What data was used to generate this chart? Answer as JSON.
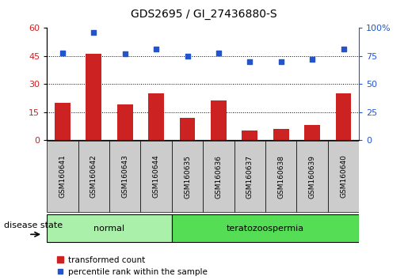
{
  "title": "GDS2695 / GI_27436880-S",
  "samples": [
    "GSM160641",
    "GSM160642",
    "GSM160643",
    "GSM160644",
    "GSM160635",
    "GSM160636",
    "GSM160637",
    "GSM160638",
    "GSM160639",
    "GSM160640"
  ],
  "bar_values": [
    20,
    46,
    19,
    25,
    12,
    21,
    5,
    6,
    8,
    25
  ],
  "scatter_values": [
    78,
    96,
    77,
    81,
    75,
    78,
    70,
    70,
    72,
    81
  ],
  "bar_color": "#cc2222",
  "scatter_color": "#2255cc",
  "ylim_left": [
    0,
    60
  ],
  "ylim_right": [
    0,
    100
  ],
  "yticks_left": [
    0,
    15,
    30,
    45,
    60
  ],
  "yticks_right": [
    0,
    25,
    50,
    75,
    100
  ],
  "grid_values": [
    15,
    30,
    45
  ],
  "groups": [
    {
      "label": "normal",
      "start": 0,
      "end": 3,
      "color": "#aaf0aa"
    },
    {
      "label": "teratozoospermia",
      "start": 4,
      "end": 9,
      "color": "#55dd55"
    }
  ],
  "group_section_label": "disease state",
  "legend_bar_label": "transformed count",
  "legend_scatter_label": "percentile rank within the sample",
  "tick_label_color_left": "#cc2222",
  "tick_label_color_right": "#2255cc",
  "plot_bg_color": "#ffffff",
  "xtick_box_color": "#cccccc",
  "bar_width": 0.5,
  "n_samples": 10
}
